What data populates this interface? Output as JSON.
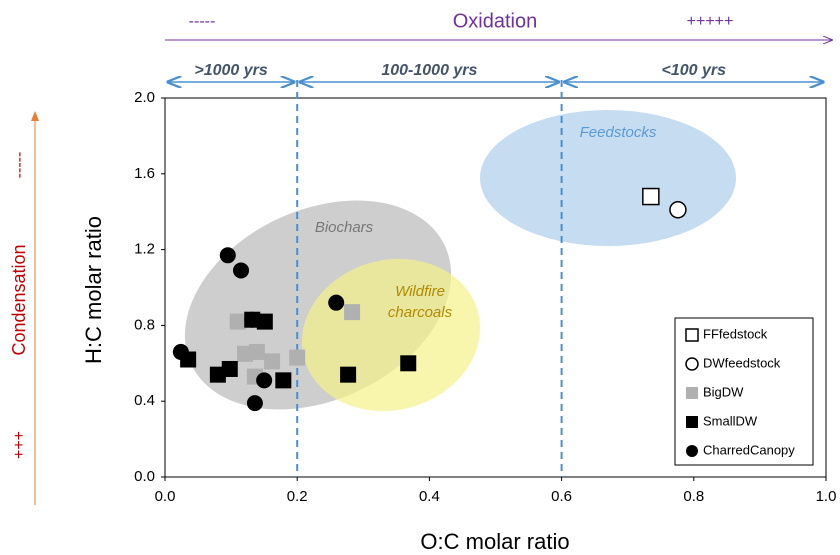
{
  "chart_data": {
    "type": "scatter",
    "x_label": "O:C molar ratio",
    "y_label": "H:C molar ratio",
    "xlim": [
      0,
      1
    ],
    "ylim": [
      0,
      2
    ],
    "xticks": [
      {
        "value": 0,
        "label": "0.0"
      },
      0.2,
      0.4,
      0.6,
      0.8,
      {
        "value": 1,
        "label": "1.0"
      }
    ],
    "yticks": [
      {
        "value": 0,
        "label": "0.0"
      },
      0.4,
      0.8,
      1.2,
      1.6,
      {
        "value": 2,
        "label": "2.0"
      }
    ],
    "reference_lines": [
      0.2,
      0.6
    ],
    "reference_color": "#4a90d0",
    "age_labels": [
      ">1000 yrs",
      "100-1000 yrs",
      "<100 yrs"
    ],
    "top_arrow": {
      "label": "Oxidation",
      "low": "-----",
      "high": "+++++",
      "color": "#7030a0"
    },
    "side_arrow": {
      "label": "Condensation",
      "low": "+++",
      "high": "-----",
      "color": "#c00000"
    },
    "regions": {
      "biochars": "Biochars",
      "wildfire": [
        "Wildfire",
        "charcoals"
      ],
      "feedstocks": "Feedstocks"
    },
    "series": [
      {
        "name": "FFfedstock",
        "marker": "square",
        "filled": false,
        "color": "#000000",
        "x": [
          0.735
        ],
        "y": [
          1.48
        ]
      },
      {
        "name": "DWfeedstock",
        "marker": "circle",
        "filled": false,
        "color": "#000000",
        "x": [
          0.776
        ],
        "y": [
          1.41
        ]
      },
      {
        "name": "BigDW",
        "marker": "square",
        "filled": true,
        "color": "#b0b0b0",
        "x": [
          0.11,
          0.121,
          0.136,
          0.139,
          0.162,
          0.2,
          0.283
        ],
        "y": [
          0.82,
          0.65,
          0.53,
          0.66,
          0.61,
          0.63,
          0.87
        ]
      },
      {
        "name": "SmallDW",
        "marker": "square",
        "filled": true,
        "color": "#000000",
        "x": [
          0.035,
          0.08,
          0.098,
          0.132,
          0.151,
          0.179,
          0.277,
          0.368
        ],
        "y": [
          0.62,
          0.54,
          0.57,
          0.83,
          0.82,
          0.51,
          0.54,
          0.6
        ]
      },
      {
        "name": "CharredCanopy",
        "marker": "circle",
        "filled": true,
        "color": "#000000",
        "x": [
          0.024,
          0.095,
          0.115,
          0.132,
          0.15,
          0.136,
          0.259
        ],
        "y": [
          0.66,
          1.17,
          1.09,
          0.83,
          0.51,
          0.39,
          0.92
        ]
      }
    ]
  }
}
